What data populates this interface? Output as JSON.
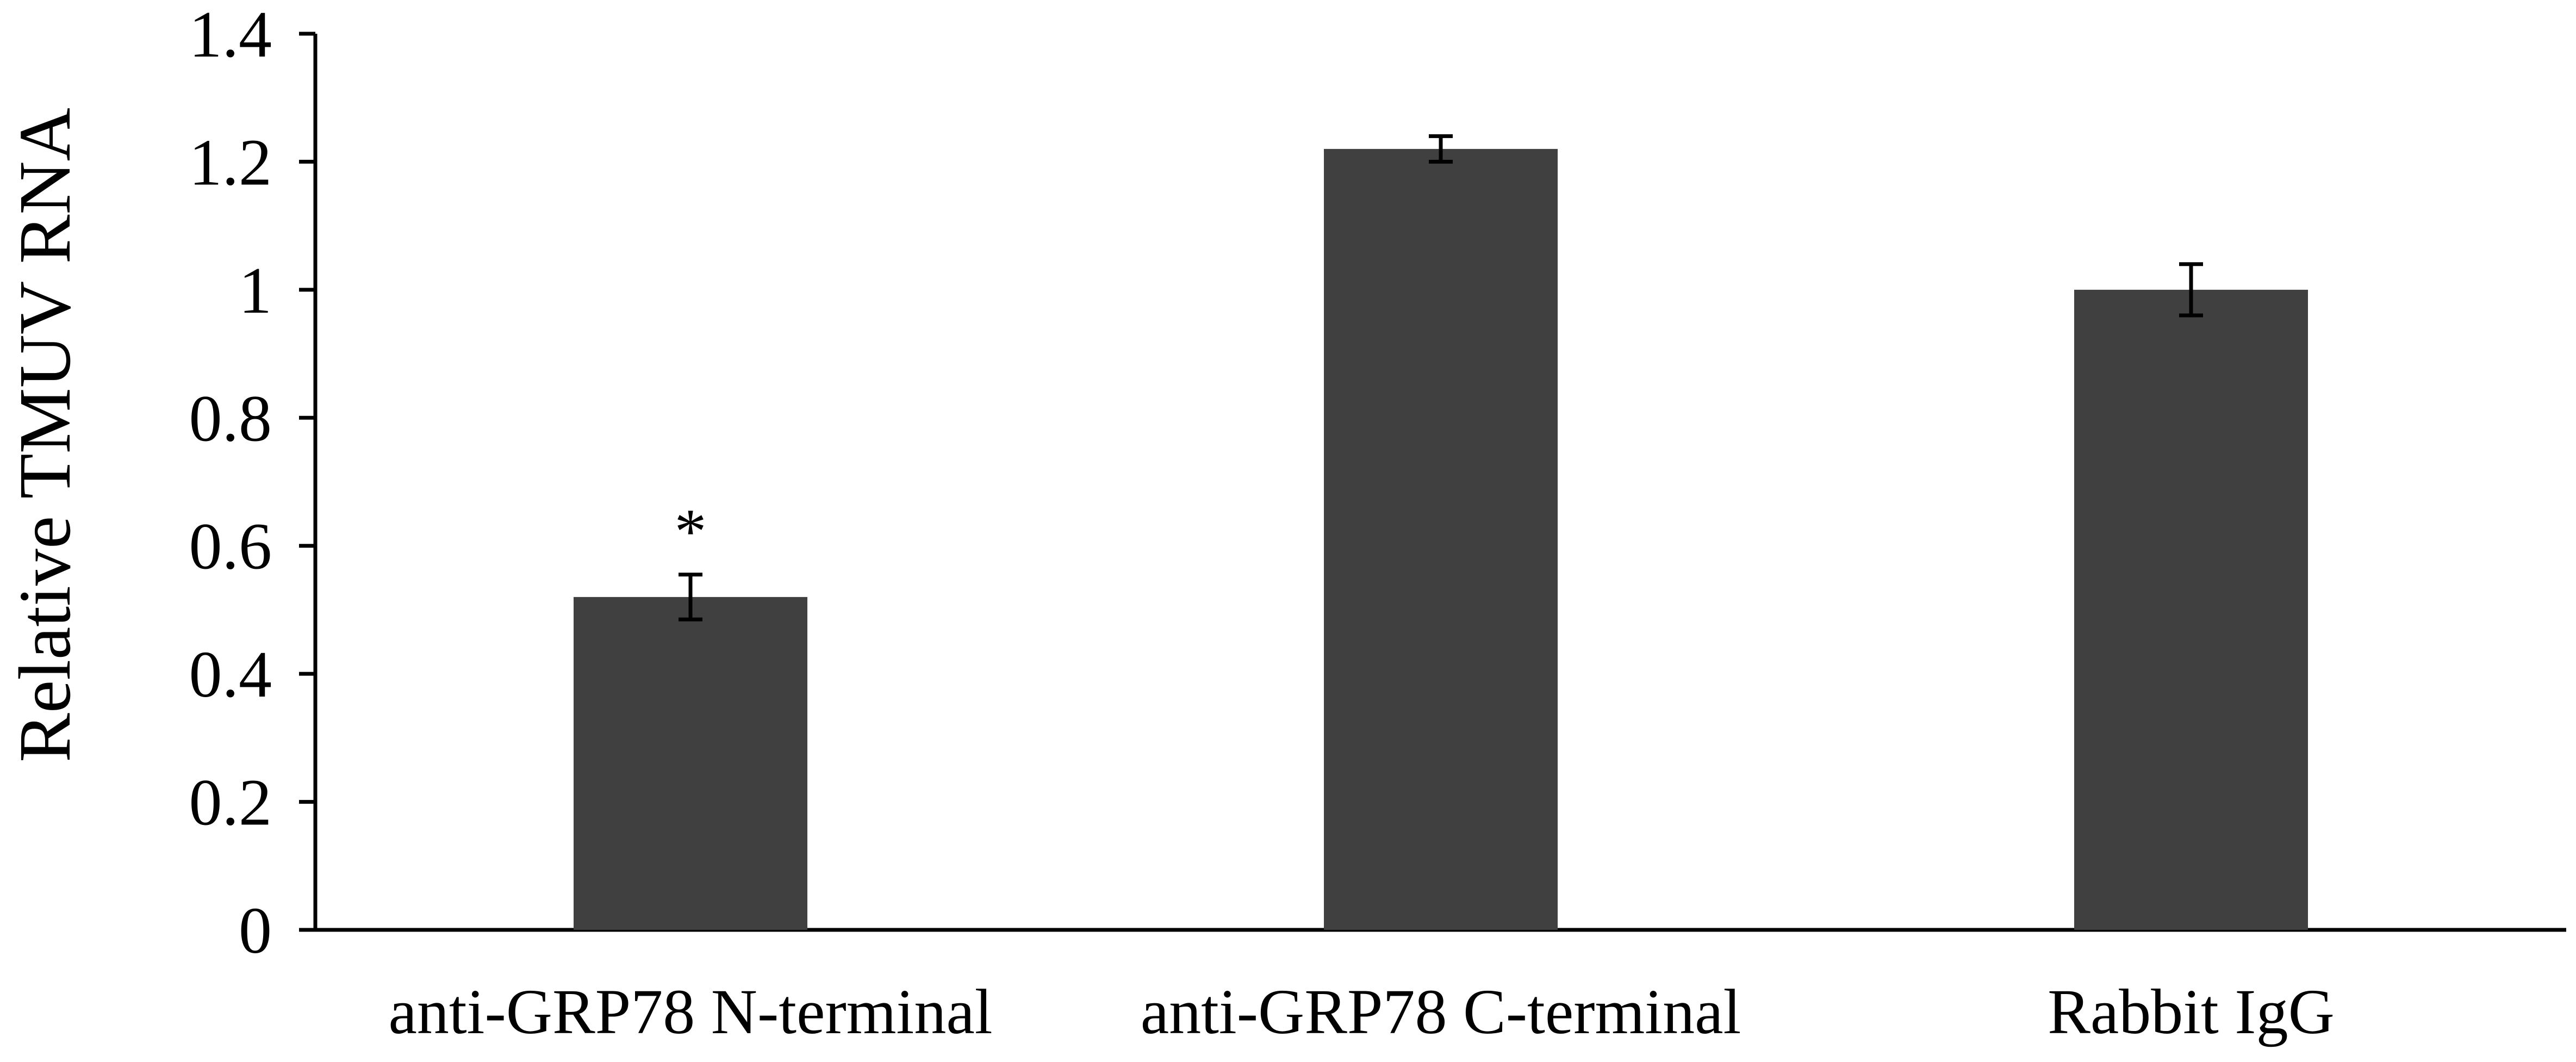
{
  "chart_data": {
    "type": "bar",
    "title": "",
    "xlabel": "",
    "ylabel": "Relative TMUV RNA",
    "categories": [
      "anti-GRP78 N-terminal",
      "anti-GRP78 C-terminal",
      "Rabbit IgG"
    ],
    "values": [
      0.52,
      1.22,
      1.0
    ],
    "errors": [
      0.035,
      0.02,
      0.04
    ],
    "annotations": [
      "*",
      "",
      ""
    ],
    "ylim": [
      0,
      1.4
    ],
    "yticks": [
      0,
      0.2,
      0.4,
      0.6,
      0.8,
      1,
      1.2,
      1.4
    ],
    "ytick_labels": [
      "0",
      "0.2",
      "0.4",
      "0.6",
      "0.8",
      "1",
      "1.2",
      "1.4"
    ],
    "grid": false,
    "legend": "none",
    "bar_color": "#404040",
    "axis_color": "#000000"
  }
}
